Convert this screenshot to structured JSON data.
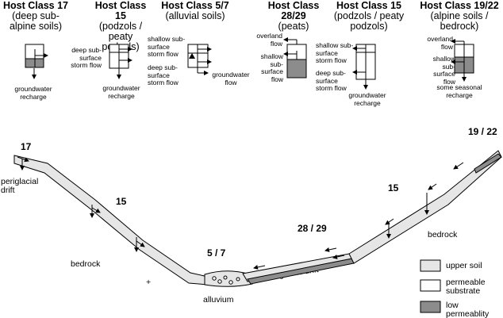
{
  "header": {
    "classes": [
      {
        "title": "Host Class 17",
        "subtitle": "(deep sub-alpine soils)"
      },
      {
        "title": "Host Class 15",
        "subtitle": "(podzols / peaty podzols)"
      },
      {
        "title": "Host Class 5/7",
        "subtitle": "(alluvial soils)"
      },
      {
        "title": "Host Class 28/29",
        "subtitle": "(peats)"
      },
      {
        "title": "Host Class 15",
        "subtitle": "(podzols / peaty podzols)"
      },
      {
        "title": "Host Class 19/22",
        "subtitle": "(alpine soils / bedrock)"
      }
    ]
  },
  "flow_notes": {
    "c17_groundwater": "groundwater recharge",
    "c15_deep": "deep sub-surface storm flow",
    "c15_groundwater": "groundwater recharge",
    "c57_shallow": "shallow sub-surface storm flow",
    "c57_deep": "deep sub-surface storm flow",
    "c57_groundwater": "groundwater flow",
    "c2829_overland": "overland flow",
    "c2829_shallow": "shallow sub-surface flow",
    "c15b_shallow": "shallow sub-surface storm flow",
    "c15b_deep": "deep sub-surface storm flow",
    "c15b_groundwater": "groundwater recharge",
    "c1922_overland": "overland flow",
    "c1922_shallow": "shallow sub-surface flow",
    "c1922_recharge": "some seasonal recharge"
  },
  "cross_section": {
    "class_17": "17",
    "class_15_left": "15",
    "class_57": "5 / 7",
    "class_2829": "28 / 29",
    "class_15_right": "15",
    "class_1922": "19 / 22",
    "periglacial_drift": "periglacial drift",
    "bedrock_left": "bedrock",
    "bedrock_right": "bedrock",
    "alluvium": "alluvium",
    "glacial_drift": "glacial drift",
    "plus": "+"
  },
  "legend": {
    "items": [
      {
        "label": "upper soil",
        "color": "#e6e6e6"
      },
      {
        "label": "permeable substrate",
        "color": "#ffffff"
      },
      {
        "label": "low permeablity substrate",
        "color": "#8c8c8c"
      }
    ]
  }
}
